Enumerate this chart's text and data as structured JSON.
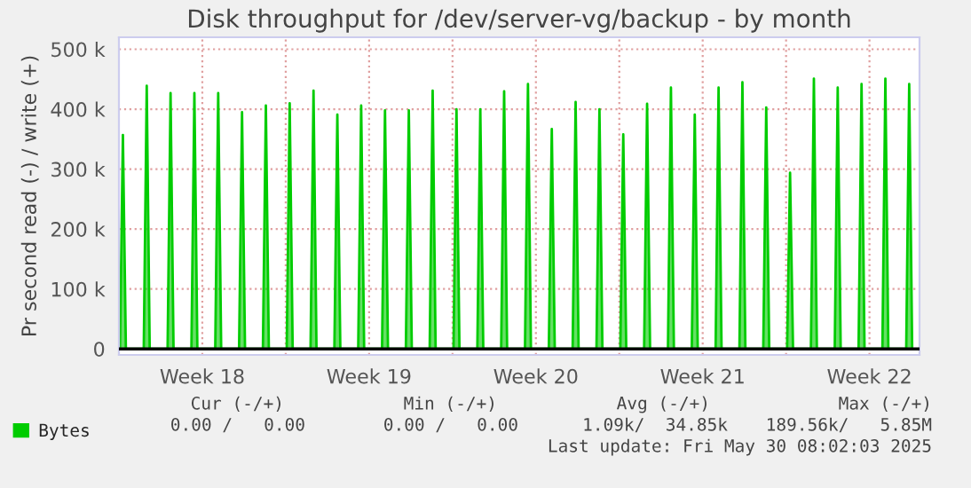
{
  "chart_data": {
    "type": "area",
    "title": "Disk throughput for /dev/server-vg/backup - by month",
    "ylabel": "Pr second read (-) / write (+)",
    "x": [
      "2025-04-27T01:00",
      "2025-04-27T04:00",
      "2025-04-27T07:00",
      "2025-04-28T01:00",
      "2025-04-28T04:00",
      "2025-04-28T07:00",
      "2025-04-29T01:00",
      "2025-04-29T04:00",
      "2025-04-29T07:00",
      "2025-04-30T01:00",
      "2025-04-30T04:00",
      "2025-04-30T07:00",
      "2025-05-01T01:00",
      "2025-05-01T04:00",
      "2025-05-01T07:00",
      "2025-05-02T01:00",
      "2025-05-02T04:00",
      "2025-05-02T07:00",
      "2025-05-03T01:00",
      "2025-05-03T04:00",
      "2025-05-03T07:00",
      "2025-05-04T01:00",
      "2025-05-04T04:00",
      "2025-05-04T07:00",
      "2025-05-05T01:00",
      "2025-05-05T04:00",
      "2025-05-05T07:00",
      "2025-05-06T01:00",
      "2025-05-06T04:00",
      "2025-05-06T07:00",
      "2025-05-07T01:00",
      "2025-05-07T04:00",
      "2025-05-07T07:00",
      "2025-05-08T01:00",
      "2025-05-08T04:00",
      "2025-05-08T07:00",
      "2025-05-09T01:00",
      "2025-05-09T04:00",
      "2025-05-09T07:00",
      "2025-05-10T01:00",
      "2025-05-10T04:00",
      "2025-05-10T07:00",
      "2025-05-11T01:00",
      "2025-05-11T04:00",
      "2025-05-11T07:00",
      "2025-05-12T01:00",
      "2025-05-12T04:00",
      "2025-05-12T07:00",
      "2025-05-13T01:00",
      "2025-05-13T04:00",
      "2025-05-13T07:00",
      "2025-05-14T01:00",
      "2025-05-14T04:00",
      "2025-05-14T07:00",
      "2025-05-15T01:00",
      "2025-05-15T04:00",
      "2025-05-15T07:00",
      "2025-05-16T01:00",
      "2025-05-16T04:00",
      "2025-05-16T07:00",
      "2025-05-17T01:00",
      "2025-05-17T04:00",
      "2025-05-17T07:00",
      "2025-05-18T01:00",
      "2025-05-18T04:00",
      "2025-05-18T07:00",
      "2025-05-19T01:00",
      "2025-05-19T04:00",
      "2025-05-19T07:00",
      "2025-05-20T01:00",
      "2025-05-20T04:00",
      "2025-05-20T07:00",
      "2025-05-21T01:00",
      "2025-05-21T04:00",
      "2025-05-21T07:00",
      "2025-05-22T01:00",
      "2025-05-22T04:00",
      "2025-05-22T07:00",
      "2025-05-23T01:00",
      "2025-05-23T04:00",
      "2025-05-23T07:00",
      "2025-05-24T01:00",
      "2025-05-24T04:00",
      "2025-05-24T07:00",
      "2025-05-25T01:00",
      "2025-05-25T04:00",
      "2025-05-25T07:00",
      "2025-05-26T01:00",
      "2025-05-26T04:00",
      "2025-05-26T07:00",
      "2025-05-27T01:00",
      "2025-05-27T04:00",
      "2025-05-27T07:00",
      "2025-05-28T01:00",
      "2025-05-28T04:00",
      "2025-05-28T07:00",
      "2025-05-29T01:00",
      "2025-05-29T04:00",
      "2025-05-29T07:00",
      "2025-05-30T01:00",
      "2025-05-30T04:00",
      "2025-05-30T07:00"
    ],
    "series": [
      {
        "name": "Bytes",
        "color": "#00cc00",
        "values": [
          0,
          357000,
          0,
          0,
          439000,
          0,
          0,
          427000,
          0,
          0,
          427000,
          0,
          0,
          427000,
          0,
          0,
          395000,
          0,
          0,
          406000,
          0,
          0,
          410000,
          0,
          0,
          431000,
          0,
          0,
          391000,
          0,
          0,
          406000,
          0,
          0,
          398000,
          0,
          0,
          398000,
          0,
          0,
          431000,
          0,
          0,
          400000,
          0,
          0,
          400000,
          0,
          0,
          430000,
          0,
          0,
          442000,
          0,
          0,
          367000,
          0,
          0,
          412000,
          0,
          0,
          400000,
          0,
          0,
          358000,
          0,
          0,
          409000,
          0,
          0,
          436000,
          0,
          0,
          391000,
          0,
          0,
          436000,
          0,
          0,
          445000,
          0,
          0,
          403000,
          0,
          0,
          294000,
          0,
          0,
          451000,
          0,
          0,
          436000,
          0,
          0,
          442000,
          0,
          0,
          451000,
          0,
          0,
          442000,
          0
        ]
      }
    ],
    "xlim": [
      "2025-04-27T00:00",
      "2025-05-30T14:24"
    ],
    "xticks": [
      {
        "value": "2025-04-30T12:00",
        "label": "Week 18"
      },
      {
        "value": "2025-05-04",
        "label": null
      },
      {
        "value": "2025-05-07T12:00",
        "label": "Week 19"
      },
      {
        "value": "2025-05-11",
        "label": null
      },
      {
        "value": "2025-05-14T12:00",
        "label": "Week 20"
      },
      {
        "value": "2025-05-18",
        "label": null
      },
      {
        "value": "2025-05-21T12:00",
        "label": "Week 21"
      },
      {
        "value": "2025-05-25",
        "label": null
      },
      {
        "value": "2025-05-28T12:00",
        "label": "Week 22"
      }
    ],
    "ylim": [
      -10000,
      520000
    ],
    "yticks": [
      0,
      {
        "value": 100000,
        "label": "100 k"
      },
      {
        "value": 200000,
        "label": "200 k"
      },
      {
        "value": 300000,
        "label": "300 k"
      },
      {
        "value": 400000,
        "label": "400 k"
      },
      {
        "value": 500000,
        "label": "500 k"
      }
    ],
    "ref_lines": [
      {
        "axis": "y",
        "value": 0,
        "color": "#000000"
      }
    ],
    "grid": true,
    "legend": "bottom left",
    "annotations": [
      "Cur (-/+)",
      "Min (-/+)",
      "Avg (-/+)",
      "Max (-/+)",
      "0.00 /   0.00",
      "0.00 /   0.00",
      "1.09k/  34.85k",
      "189.56k/   5.85M",
      "Last update: Fri May 30 08:02:03 2025"
    ]
  }
}
